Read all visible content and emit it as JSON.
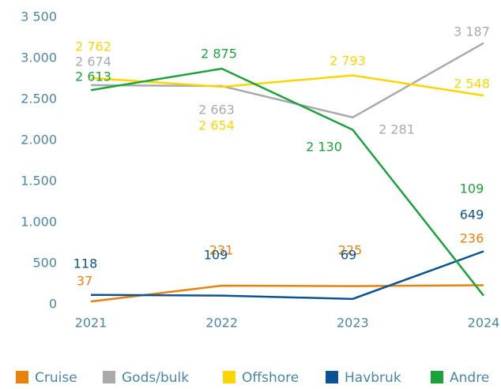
{
  "chart_data": {
    "type": "line",
    "categories": [
      "2021",
      "2022",
      "2023",
      "2024"
    ],
    "series": [
      {
        "name": "Cruise",
        "color": "#e8820c",
        "values": [
          37,
          231,
          225,
          236
        ],
        "value_labels": [
          "37",
          "231",
          "225",
          "236"
        ]
      },
      {
        "name": "Gods/bulk",
        "color": "#aaaaaa",
        "values": [
          2674,
          2663,
          2281,
          3187
        ],
        "value_labels": [
          "2 674",
          "2 663",
          "2 281",
          "3 187"
        ]
      },
      {
        "name": "Offshore",
        "color": "#ffd500",
        "values": [
          2762,
          2654,
          2793,
          2548
        ],
        "value_labels": [
          "2 762",
          "2 654",
          "2 793",
          "2 548"
        ]
      },
      {
        "name": "Havbruk",
        "color": "#0b5394",
        "values": [
          118,
          109,
          69,
          649
        ],
        "value_labels": [
          "118",
          "109",
          "69",
          "649"
        ]
      },
      {
        "name": "Andre",
        "color": "#1aa33a",
        "values": [
          2613,
          2875,
          2130,
          109
        ],
        "value_labels": [
          "2 613",
          "2 875",
          "2 130",
          "109"
        ]
      }
    ],
    "ylim": [
      0,
      3500
    ],
    "yticks": [
      0,
      500,
      {
        "value": 1000,
        "label": "1.000"
      },
      {
        "value": 1500,
        "label": "1.500"
      },
      {
        "value": 2000,
        "label": "2.000"
      },
      {
        "value": 2500,
        "label": "2.500"
      },
      {
        "value": 3000,
        "label": "3.000"
      },
      {
        "value": 3500,
        "label": "3 500"
      }
    ],
    "grid": false,
    "legend": "bottom"
  }
}
